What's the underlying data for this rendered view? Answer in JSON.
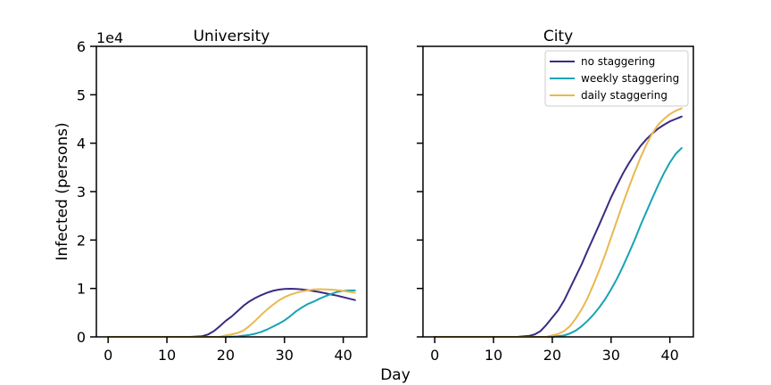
{
  "figure": {
    "xlabel": "Day",
    "ylabel": "Infected (persons)",
    "scale_label": "1e4"
  },
  "legend": {
    "items": [
      {
        "label": "no staggering",
        "color": "#3b2a82"
      },
      {
        "label": "weekly staggering",
        "color": "#17a4b5"
      },
      {
        "label": "daily staggering",
        "color": "#e8b94f"
      }
    ]
  },
  "chart_data": [
    {
      "type": "line",
      "title": "University",
      "xlabel": "",
      "ylabel": "Infected (persons)",
      "xlim": [
        -2,
        44
      ],
      "ylim": [
        0,
        60000
      ],
      "xticks": [
        0,
        10,
        20,
        30,
        40
      ],
      "yticks": [
        0,
        10000,
        20000,
        30000,
        40000,
        50000,
        60000
      ],
      "ytick_labels": [
        "0",
        "1",
        "2",
        "3",
        "4",
        "5",
        "6"
      ],
      "grid": false,
      "series": [
        {
          "name": "no staggering",
          "color": "#3b2a82",
          "x": [
            0,
            14,
            16,
            17,
            18,
            19,
            20,
            21,
            22,
            23,
            24,
            25,
            26,
            27,
            28,
            29,
            30,
            31,
            32,
            33,
            34,
            35,
            36,
            37,
            38,
            39,
            40,
            41,
            42
          ],
          "y": [
            0,
            0,
            150,
            500,
            1200,
            2200,
            3300,
            4200,
            5300,
            6400,
            7300,
            8000,
            8600,
            9100,
            9500,
            9750,
            9900,
            9950,
            9900,
            9800,
            9650,
            9450,
            9250,
            9000,
            8750,
            8500,
            8200,
            7900,
            7600
          ]
        },
        {
          "name": "weekly staggering",
          "color": "#17a4b5",
          "x": [
            0,
            20,
            22,
            23,
            24,
            25,
            26,
            27,
            28,
            29,
            30,
            31,
            32,
            33,
            34,
            35,
            36,
            37,
            38,
            39,
            40,
            41,
            42
          ],
          "y": [
            0,
            0,
            100,
            250,
            400,
            650,
            1000,
            1500,
            2100,
            2700,
            3400,
            4300,
            5300,
            6100,
            6800,
            7300,
            7900,
            8400,
            8900,
            9300,
            9500,
            9600,
            9600
          ]
        },
        {
          "name": "daily staggering",
          "color": "#e8b94f",
          "x": [
            0,
            19,
            20,
            21,
            22,
            23,
            24,
            25,
            26,
            27,
            28,
            29,
            30,
            31,
            32,
            33,
            34,
            35,
            36,
            37,
            38,
            39,
            40,
            41,
            42
          ],
          "y": [
            0,
            0,
            300,
            500,
            800,
            1300,
            2200,
            3300,
            4500,
            5600,
            6600,
            7500,
            8200,
            8700,
            9100,
            9400,
            9600,
            9800,
            9850,
            9800,
            9750,
            9650,
            9500,
            9300,
            9100
          ]
        }
      ]
    },
    {
      "type": "line",
      "title": "City",
      "xlabel": "",
      "ylabel": "",
      "xlim": [
        -2,
        44
      ],
      "ylim": [
        0,
        60000
      ],
      "xticks": [
        0,
        10,
        20,
        30,
        40
      ],
      "yticks": [
        0,
        10000,
        20000,
        30000,
        40000,
        50000,
        60000
      ],
      "ytick_labels": [
        "",
        "",
        "",
        "",
        "",
        "",
        ""
      ],
      "grid": false,
      "legend_position": "top-right",
      "series": [
        {
          "name": "no staggering",
          "color": "#3b2a82",
          "x": [
            0,
            14,
            16,
            17,
            18,
            19,
            20,
            21,
            22,
            23,
            24,
            25,
            26,
            27,
            28,
            29,
            30,
            31,
            32,
            33,
            34,
            35,
            36,
            37,
            38,
            39,
            40,
            41,
            42
          ],
          "y": [
            0,
            0,
            200,
            500,
            1200,
            2500,
            4000,
            5500,
            7500,
            10000,
            12500,
            15000,
            17800,
            20500,
            23200,
            26000,
            28800,
            31300,
            33700,
            35800,
            37700,
            39400,
            40800,
            42000,
            43000,
            43800,
            44500,
            45000,
            45500
          ]
        },
        {
          "name": "weekly staggering",
          "color": "#17a4b5",
          "x": [
            0,
            20,
            22,
            23,
            24,
            25,
            26,
            27,
            28,
            29,
            30,
            31,
            32,
            33,
            34,
            35,
            36,
            37,
            38,
            39,
            40,
            41,
            42
          ],
          "y": [
            0,
            0,
            300,
            700,
            1300,
            2200,
            3300,
            4600,
            6100,
            7800,
            9800,
            12000,
            14500,
            17200,
            20000,
            23000,
            25800,
            28600,
            31300,
            33800,
            36000,
            37800,
            39000
          ]
        },
        {
          "name": "daily staggering",
          "color": "#e8b94f",
          "x": [
            0,
            19,
            20,
            21,
            22,
            23,
            24,
            25,
            26,
            27,
            28,
            29,
            30,
            31,
            32,
            33,
            34,
            35,
            36,
            37,
            38,
            39,
            40,
            41,
            42
          ],
          "y": [
            0,
            0,
            300,
            600,
            1200,
            2200,
            3800,
            5700,
            8000,
            10800,
            13800,
            17000,
            20500,
            24000,
            27500,
            30800,
            34000,
            37000,
            39700,
            42000,
            43800,
            45000,
            46000,
            46700,
            47200
          ]
        }
      ]
    }
  ]
}
